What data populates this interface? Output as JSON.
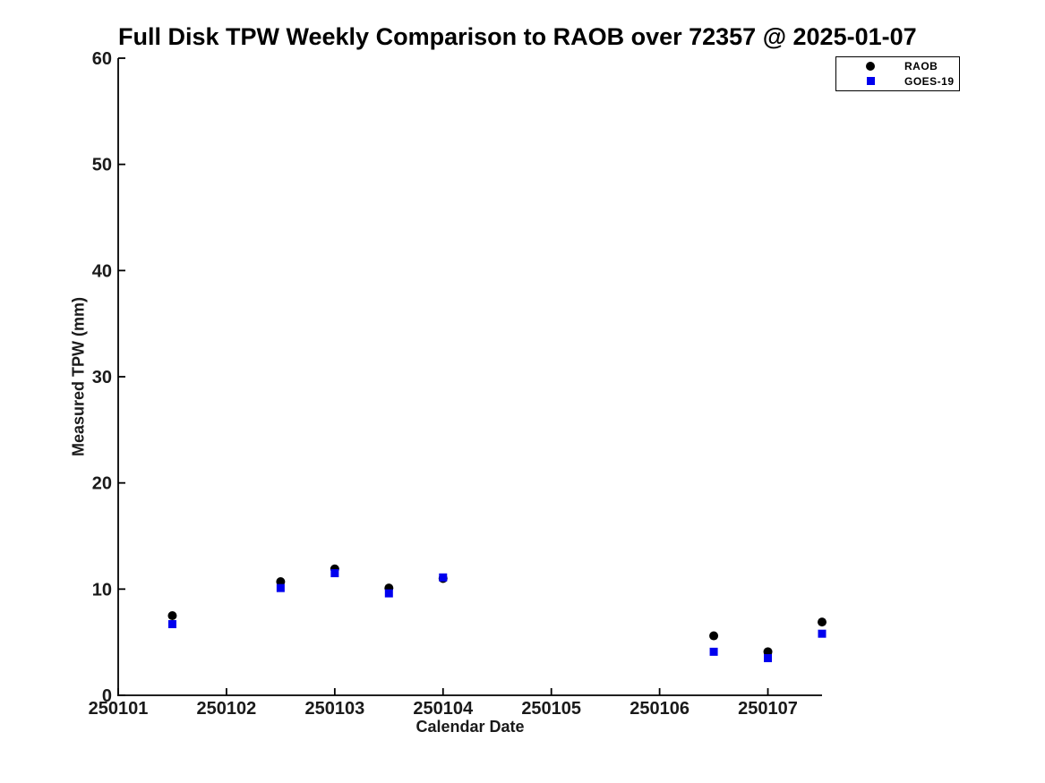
{
  "chart_data": {
    "type": "scatter",
    "title": "Full Disk TPW Weekly Comparison to RAOB over 72357 @ 2025-01-07",
    "xlabel": "Calendar Date",
    "ylabel": "Measured TPW (mm)",
    "xlim": [
      250101,
      250107.5
    ],
    "ylim": [
      0,
      60
    ],
    "x_ticks": [
      250101,
      250102,
      250103,
      250104,
      250105,
      250106,
      250107
    ],
    "y_ticks": [
      0,
      10,
      20,
      30,
      40,
      50,
      60
    ],
    "grid": false,
    "legend_position": "top-right",
    "background_color": "#ffffff",
    "axis_color": "#000000",
    "series": [
      {
        "name": "RAOB",
        "marker": "circle",
        "color": "#000000",
        "x": [
          250101.5,
          250102.5,
          250103,
          250103.5,
          250104,
          250106.5,
          250107,
          250107.5
        ],
        "y": [
          7.5,
          10.7,
          11.9,
          10.1,
          11.0,
          5.6,
          4.1,
          6.9
        ]
      },
      {
        "name": "GOES-19",
        "marker": "square",
        "color": "#0000ee",
        "x": [
          250101.5,
          250102.5,
          250103,
          250103.5,
          250104,
          250106.5,
          250107,
          250107.5
        ],
        "y": [
          6.7,
          10.1,
          11.5,
          9.6,
          11.1,
          4.1,
          3.5,
          5.8
        ]
      }
    ]
  }
}
